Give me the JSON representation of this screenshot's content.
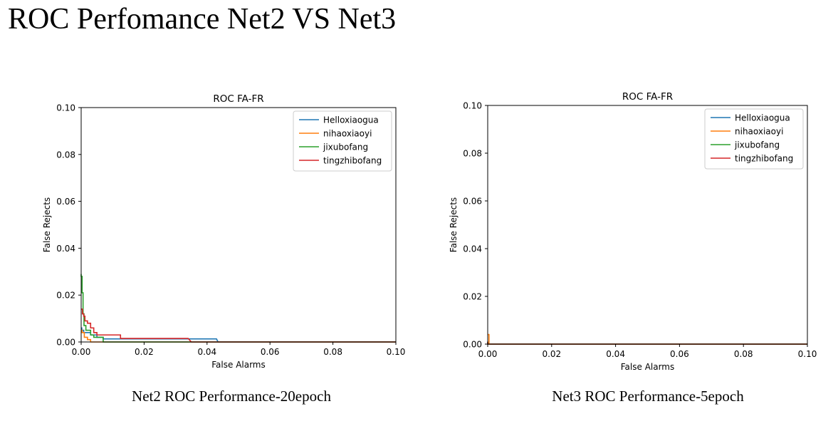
{
  "page": {
    "title": "ROC Perfomance Net2 VS Net3"
  },
  "chart_data": [
    {
      "type": "line",
      "title": "ROC FA-FR",
      "caption": "Net2 ROC Performance-20epoch",
      "xlabel": "False Alarms",
      "ylabel": "False Rejects",
      "xlim": [
        0,
        0.1
      ],
      "ylim": [
        0,
        0.1
      ],
      "xticks": [
        "0.00",
        "0.02",
        "0.04",
        "0.06",
        "0.08",
        "0.10"
      ],
      "yticks": [
        "0.00",
        "0.02",
        "0.04",
        "0.06",
        "0.08",
        "0.10"
      ],
      "grid": false,
      "legend_position": "top-right",
      "series": [
        {
          "name": "Helloxiaogua",
          "color": "#1f77b4",
          "x": [
            0,
            0,
            0.0002,
            0.0002,
            0.0008,
            0.0008,
            0.0015,
            0.0015,
            0.003,
            0.003,
            0.005,
            0.005,
            0.007,
            0.007,
            0.043,
            0.0435,
            0.1
          ],
          "y": [
            0.006,
            0.006,
            0.006,
            0.005,
            0.005,
            0.004,
            0.004,
            0.004,
            0.004,
            0.003,
            0.003,
            0.002,
            0.002,
            0.0013,
            0.0013,
            0,
            0
          ]
        },
        {
          "name": "nihaoxiaoyi",
          "color": "#ff7f0e",
          "x": [
            0,
            0,
            0.0003,
            0.0003,
            0.001,
            0.001,
            0.002,
            0.002,
            0.003,
            0.003,
            0.1
          ],
          "y": [
            0.005,
            0.005,
            0.005,
            0.004,
            0.004,
            0.002,
            0.002,
            0.001,
            0.001,
            0,
            0
          ]
        },
        {
          "name": "jixubofang",
          "color": "#2ca02c",
          "x": [
            0,
            0,
            0.0003,
            0.0003,
            0.0006,
            0.0006,
            0.0009,
            0.0009,
            0.0015,
            0.0015,
            0.003,
            0.003,
            0.004,
            0.004,
            0.007,
            0.007,
            0.1
          ],
          "y": [
            0.029,
            0.028,
            0.028,
            0.021,
            0.021,
            0.012,
            0.012,
            0.007,
            0.007,
            0.005,
            0.005,
            0.003,
            0.003,
            0.002,
            0.002,
            0,
            0
          ]
        },
        {
          "name": "tingzhibofang",
          "color": "#d62728",
          "x": [
            0,
            0,
            0.0004,
            0.0004,
            0.0008,
            0.0008,
            0.0012,
            0.0012,
            0.002,
            0.002,
            0.003,
            0.003,
            0.004,
            0.004,
            0.005,
            0.005,
            0.0125,
            0.0125,
            0.034,
            0.035,
            0.1
          ],
          "y": [
            0.014,
            0.014,
            0.014,
            0.012,
            0.012,
            0.011,
            0.011,
            0.009,
            0.009,
            0.008,
            0.008,
            0.006,
            0.006,
            0.004,
            0.004,
            0.003,
            0.003,
            0.0015,
            0.0015,
            0,
            0
          ]
        }
      ]
    },
    {
      "type": "line",
      "title": "ROC FA-FR",
      "caption": "Net3 ROC Performance-5epoch",
      "xlabel": "False Alarms",
      "ylabel": "False Rejects",
      "xlim": [
        0,
        0.1
      ],
      "ylim": [
        0,
        0.1
      ],
      "xticks": [
        "0.00",
        "0.02",
        "0.04",
        "0.06",
        "0.08",
        "0.10"
      ],
      "yticks": [
        "0.00",
        "0.02",
        "0.04",
        "0.06",
        "0.08",
        "0.10"
      ],
      "grid": false,
      "legend_position": "top-right",
      "series": [
        {
          "name": "Helloxiaogua",
          "color": "#1f77b4",
          "x": [
            0,
            0,
            0.1
          ],
          "y": [
            0.001,
            0,
            0
          ]
        },
        {
          "name": "nihaoxiaoyi",
          "color": "#ff7f0e",
          "x": [
            0,
            0,
            0.0004,
            0.0004,
            0.1
          ],
          "y": [
            0.004,
            0.004,
            0.004,
            0,
            0
          ]
        },
        {
          "name": "jixubofang",
          "color": "#2ca02c",
          "x": [
            0,
            0,
            0.1
          ],
          "y": [
            0.001,
            0,
            0
          ]
        },
        {
          "name": "tingzhibofang",
          "color": "#d62728",
          "x": [
            0,
            0,
            0.1
          ],
          "y": [
            0.001,
            0,
            0
          ]
        }
      ]
    }
  ]
}
